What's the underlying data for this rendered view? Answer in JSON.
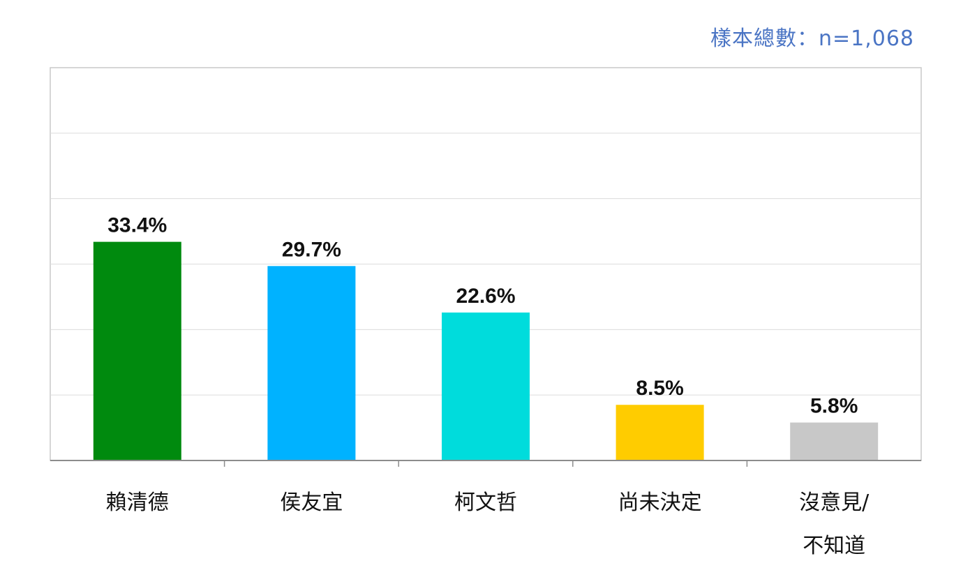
{
  "sample_note": "樣本總數：n=1,068",
  "chart_data": {
    "type": "bar",
    "categories": [
      "賴清德",
      "侯友宜",
      "柯文哲",
      "尚未決定",
      "沒意見/不知道"
    ],
    "category_lines": [
      [
        "賴清德"
      ],
      [
        "侯友宜"
      ],
      [
        "柯文哲"
      ],
      [
        "尚未決定"
      ],
      [
        "沒意見/",
        "不知道"
      ]
    ],
    "values": [
      33.4,
      29.7,
      22.6,
      8.5,
      5.8
    ],
    "value_labels": [
      "33.4%",
      "29.7%",
      "22.6%",
      "8.5%",
      "5.8%"
    ],
    "colors": [
      "#008a0e",
      "#00b2ff",
      "#00dcdc",
      "#ffcc00",
      "#c8c8c8"
    ],
    "ylim": [
      0,
      60
    ],
    "grid": true,
    "legend": "none"
  }
}
